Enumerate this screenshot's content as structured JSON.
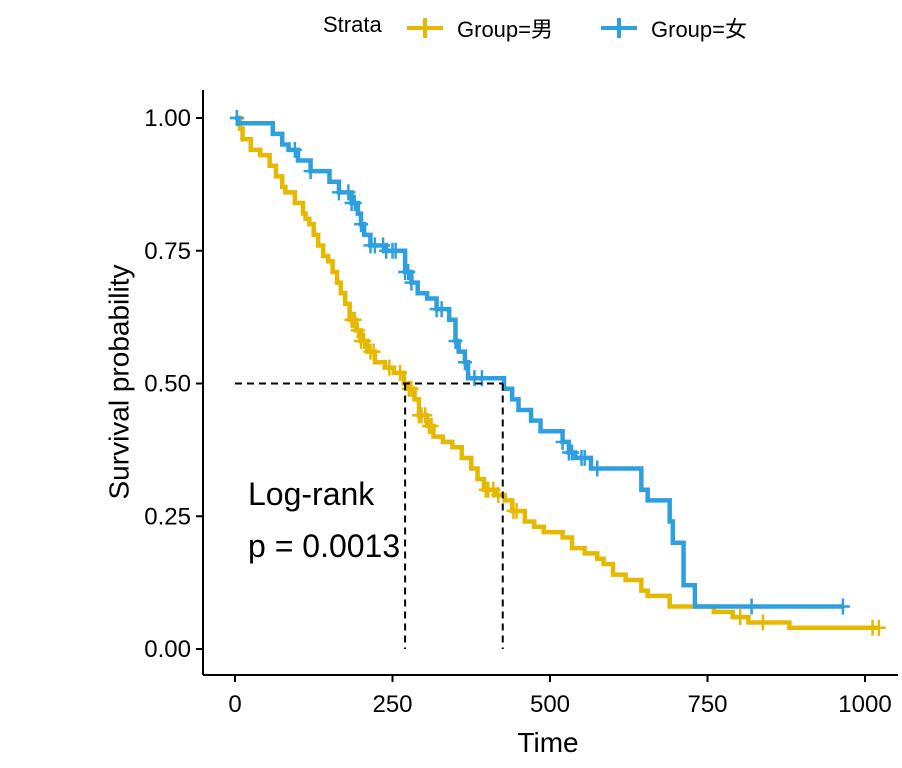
{
  "chart_data": {
    "type": "line",
    "title": "",
    "xlabel": "Time",
    "ylabel": "Survival probability",
    "xlim": [
      0,
      1000
    ],
    "ylim": [
      0,
      1
    ],
    "x_ticks": [
      "0",
      "250",
      "500",
      "750",
      "1000"
    ],
    "y_ticks": [
      "0.00",
      "0.25",
      "0.50",
      "0.75",
      "1.00"
    ],
    "grid": false,
    "legend": {
      "title": "Strata",
      "position": "top",
      "entries": [
        "Group=男",
        "Group=女"
      ]
    },
    "annotation": {
      "line1": "Log-rank",
      "line2": "p = 0.0013"
    },
    "median_survival": {
      "y": 0.5,
      "x": [
        270,
        425
      ]
    },
    "series": [
      {
        "name": "Group=男",
        "color": "#E7B800",
        "steps": [
          [
            0,
            1.0
          ],
          [
            8,
            0.98
          ],
          [
            12,
            0.96
          ],
          [
            25,
            0.94
          ],
          [
            40,
            0.93
          ],
          [
            55,
            0.91
          ],
          [
            65,
            0.89
          ],
          [
            75,
            0.87
          ],
          [
            80,
            0.86
          ],
          [
            95,
            0.84
          ],
          [
            108,
            0.82
          ],
          [
            112,
            0.81
          ],
          [
            118,
            0.8
          ],
          [
            125,
            0.78
          ],
          [
            132,
            0.76
          ],
          [
            140,
            0.74
          ],
          [
            148,
            0.73
          ],
          [
            155,
            0.71
          ],
          [
            162,
            0.69
          ],
          [
            168,
            0.67
          ],
          [
            175,
            0.65
          ],
          [
            182,
            0.62
          ],
          [
            192,
            0.6
          ],
          [
            200,
            0.58
          ],
          [
            210,
            0.56
          ],
          [
            222,
            0.54
          ],
          [
            238,
            0.53
          ],
          [
            252,
            0.52
          ],
          [
            268,
            0.5
          ],
          [
            275,
            0.49
          ],
          [
            285,
            0.47
          ],
          [
            292,
            0.44
          ],
          [
            305,
            0.42
          ],
          [
            315,
            0.4
          ],
          [
            330,
            0.39
          ],
          [
            345,
            0.38
          ],
          [
            360,
            0.36
          ],
          [
            375,
            0.34
          ],
          [
            385,
            0.32
          ],
          [
            395,
            0.3
          ],
          [
            415,
            0.29
          ],
          [
            428,
            0.28
          ],
          [
            440,
            0.26
          ],
          [
            460,
            0.24
          ],
          [
            475,
            0.23
          ],
          [
            490,
            0.22
          ],
          [
            520,
            0.21
          ],
          [
            535,
            0.19
          ],
          [
            555,
            0.18
          ],
          [
            575,
            0.17
          ],
          [
            585,
            0.16
          ],
          [
            600,
            0.14
          ],
          [
            620,
            0.13
          ],
          [
            645,
            0.11
          ],
          [
            655,
            0.1
          ],
          [
            690,
            0.08
          ],
          [
            760,
            0.07
          ],
          [
            790,
            0.06
          ],
          [
            815,
            0.05
          ],
          [
            880,
            0.04
          ],
          [
            1020,
            0.04
          ]
        ],
        "censor_times": [
          3,
          185,
          188,
          190,
          195,
          200,
          205,
          215,
          220,
          245,
          262,
          276,
          280,
          292,
          296,
          302,
          308,
          312,
          398,
          402,
          410,
          418,
          442,
          447,
          802,
          838,
          1012,
          1022
        ]
      },
      {
        "name": "Group=女",
        "color": "#2E9FDF",
        "steps": [
          [
            0,
            1.0
          ],
          [
            5,
            0.99
          ],
          [
            60,
            0.97
          ],
          [
            75,
            0.95
          ],
          [
            85,
            0.94
          ],
          [
            100,
            0.92
          ],
          [
            120,
            0.9
          ],
          [
            150,
            0.88
          ],
          [
            165,
            0.86
          ],
          [
            185,
            0.84
          ],
          [
            195,
            0.82
          ],
          [
            200,
            0.8
          ],
          [
            205,
            0.78
          ],
          [
            215,
            0.76
          ],
          [
            240,
            0.75
          ],
          [
            270,
            0.71
          ],
          [
            280,
            0.69
          ],
          [
            290,
            0.67
          ],
          [
            305,
            0.66
          ],
          [
            320,
            0.64
          ],
          [
            340,
            0.62
          ],
          [
            350,
            0.58
          ],
          [
            355,
            0.56
          ],
          [
            365,
            0.54
          ],
          [
            370,
            0.51
          ],
          [
            427,
            0.49
          ],
          [
            440,
            0.47
          ],
          [
            450,
            0.45
          ],
          [
            470,
            0.43
          ],
          [
            485,
            0.41
          ],
          [
            520,
            0.39
          ],
          [
            530,
            0.37
          ],
          [
            540,
            0.36
          ],
          [
            565,
            0.34
          ],
          [
            645,
            0.3
          ],
          [
            655,
            0.28
          ],
          [
            690,
            0.24
          ],
          [
            695,
            0.2
          ],
          [
            712,
            0.12
          ],
          [
            730,
            0.08
          ],
          [
            965,
            0.08
          ]
        ],
        "censor_times": [
          3,
          95,
          120,
          165,
          180,
          185,
          190,
          200,
          215,
          222,
          235,
          240,
          250,
          255,
          270,
          275,
          280,
          320,
          328,
          350,
          365,
          380,
          392,
          520,
          530,
          535,
          550,
          555,
          575,
          820,
          965
        ]
      }
    ]
  }
}
